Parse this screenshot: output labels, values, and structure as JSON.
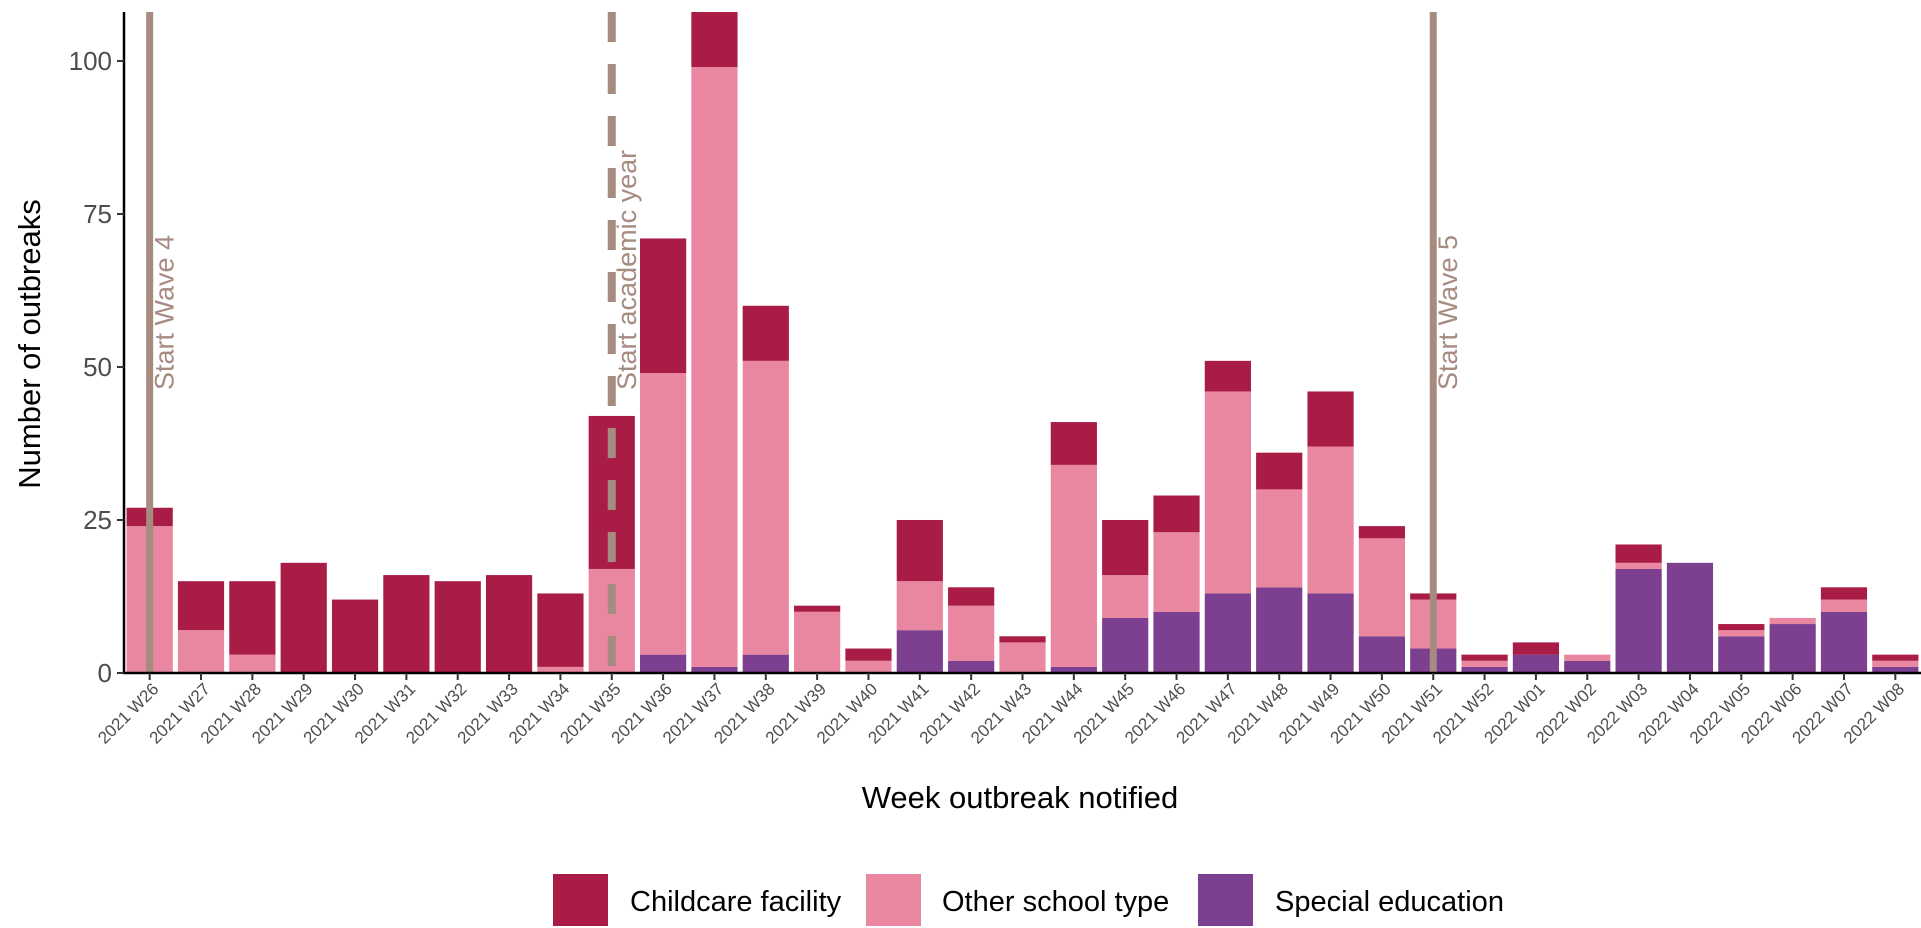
{
  "chart_data": {
    "type": "bar",
    "stacked": true,
    "xlabel": "Week outbreak notified",
    "ylabel": "Number of outbreaks",
    "ylim": [
      0,
      108
    ],
    "yticks": [
      0,
      25,
      50,
      75,
      100
    ],
    "grid": false,
    "legend_position": "bottom",
    "categories": [
      "2021 W26",
      "2021 W27",
      "2021 W28",
      "2021 W29",
      "2021 W30",
      "2021 W31",
      "2021 W32",
      "2021 W33",
      "2021 W34",
      "2021 W35",
      "2021 W36",
      "2021 W37",
      "2021 W38",
      "2021 W39",
      "2021 W40",
      "2021 W41",
      "2021 W42",
      "2021 W43",
      "2021 W44",
      "2021 W45",
      "2021 W46",
      "2021 W47",
      "2021 W48",
      "2021 W49",
      "2021 W50",
      "2021 W51",
      "2021 W52",
      "2022 W01",
      "2022 W02",
      "2022 W03",
      "2022 W04",
      "2022 W05",
      "2022 W06",
      "2022 W07",
      "2022 W08"
    ],
    "series": [
      {
        "name": "Special education",
        "color": "#7d3f8f",
        "values": [
          0,
          0,
          0,
          0,
          0,
          0,
          0,
          0,
          0,
          0,
          3,
          1,
          3,
          0,
          0,
          7,
          2,
          0,
          1,
          9,
          10,
          13,
          14,
          13,
          6,
          4,
          1,
          3,
          2,
          17,
          18,
          6,
          8,
          10,
          1
        ]
      },
      {
        "name": "Other school type",
        "color": "#ea87a0",
        "values": [
          24,
          7,
          3,
          0,
          0,
          0,
          0,
          0,
          1,
          17,
          46,
          98,
          48,
          10,
          2,
          8,
          9,
          5,
          33,
          7,
          13,
          33,
          16,
          24,
          16,
          8,
          1,
          0,
          1,
          1,
          0,
          1,
          1,
          2,
          1
        ]
      },
      {
        "name": "Childcare facility",
        "color": "#a81c45",
        "values": [
          3,
          8,
          12,
          18,
          12,
          16,
          15,
          16,
          12,
          25,
          22,
          9,
          9,
          1,
          2,
          10,
          3,
          1,
          7,
          9,
          6,
          5,
          6,
          9,
          2,
          1,
          1,
          2,
          0,
          3,
          0,
          1,
          0,
          2,
          1
        ]
      }
    ],
    "reference_lines": [
      {
        "label": "Start Wave 4",
        "category": "2021 W26",
        "style": "solid",
        "color": "#a68b80"
      },
      {
        "label": "Start academic year",
        "category": "2021 W35",
        "style": "dashed",
        "color": "#a68b80"
      },
      {
        "label": "Start Wave 5",
        "category": "2021 W51",
        "style": "solid",
        "color": "#a68b80"
      }
    ],
    "legend": [
      "Childcare facility",
      "Other school type",
      "Special education"
    ]
  }
}
